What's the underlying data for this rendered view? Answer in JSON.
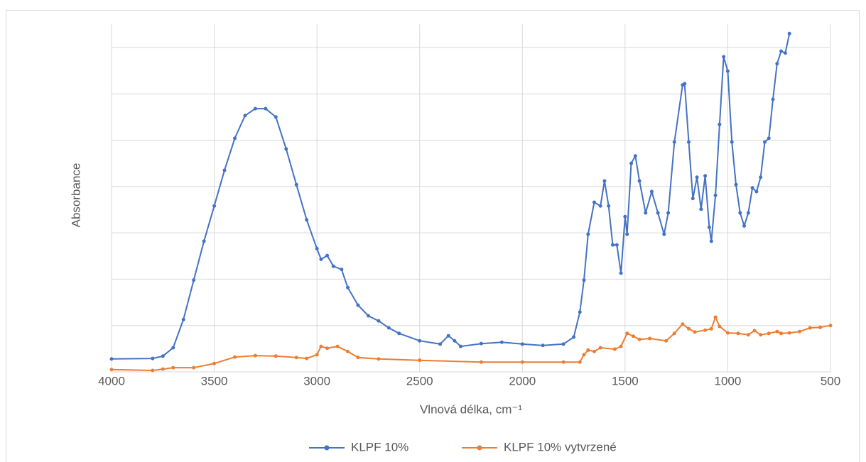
{
  "chart_data": {
    "type": "line",
    "x_label": "Vlnová délka, cm⁻¹",
    "y_label": "Absorbance",
    "xlim": [
      4000,
      500
    ],
    "xticks": [
      4000,
      3500,
      3000,
      2500,
      2000,
      1500,
      1000,
      500
    ],
    "ylim": [
      0,
      0.75
    ],
    "yticks": [
      0,
      0.1,
      0.2,
      0.3,
      0.4,
      0.5,
      0.6,
      0.7
    ],
    "grid": true,
    "legend": "bottom",
    "series": [
      {
        "name": "KLPF 10%",
        "color": "#4472c4",
        "x": [
          4000,
          3800,
          3750,
          3700,
          3650,
          3600,
          3550,
          3500,
          3450,
          3400,
          3350,
          3300,
          3250,
          3200,
          3150,
          3100,
          3050,
          3000,
          2980,
          2950,
          2920,
          2880,
          2850,
          2800,
          2750,
          2700,
          2650,
          2600,
          2500,
          2400,
          2360,
          2330,
          2300,
          2200,
          2100,
          2000,
          1900,
          1800,
          1750,
          1720,
          1700,
          1680,
          1650,
          1620,
          1600,
          1580,
          1560,
          1540,
          1520,
          1500,
          1490,
          1470,
          1450,
          1430,
          1400,
          1370,
          1340,
          1310,
          1290,
          1260,
          1220,
          1210,
          1190,
          1170,
          1150,
          1130,
          1110,
          1090,
          1080,
          1060,
          1040,
          1020,
          1000,
          980,
          960,
          940,
          920,
          900,
          880,
          860,
          840,
          820,
          800,
          780,
          760,
          740,
          720,
          700
        ],
        "values": [
          0.028,
          0.029,
          0.034,
          0.052,
          0.113,
          0.198,
          0.282,
          0.358,
          0.435,
          0.504,
          0.553,
          0.568,
          0.568,
          0.55,
          0.481,
          0.404,
          0.328,
          0.266,
          0.243,
          0.251,
          0.228,
          0.221,
          0.182,
          0.144,
          0.121,
          0.11,
          0.095,
          0.083,
          0.067,
          0.06,
          0.078,
          0.067,
          0.055,
          0.061,
          0.064,
          0.06,
          0.057,
          0.06,
          0.075,
          0.129,
          0.198,
          0.297,
          0.366,
          0.358,
          0.412,
          0.358,
          0.274,
          0.274,
          0.213,
          0.335,
          0.297,
          0.45,
          0.466,
          0.412,
          0.343,
          0.389,
          0.343,
          0.297,
          0.343,
          0.496,
          0.619,
          0.622,
          0.496,
          0.374,
          0.42,
          0.351,
          0.423,
          0.312,
          0.282,
          0.381,
          0.534,
          0.68,
          0.649,
          0.496,
          0.404,
          0.343,
          0.315,
          0.343,
          0.397,
          0.389,
          0.42,
          0.496,
          0.504,
          0.588,
          0.665,
          0.692,
          0.688,
          0.73
        ]
      },
      {
        "name": "KLPF 10% vytvrzené",
        "color": "#ed7d31",
        "x": [
          4000,
          3800,
          3750,
          3700,
          3600,
          3500,
          3400,
          3300,
          3200,
          3100,
          3050,
          3000,
          2980,
          2950,
          2900,
          2850,
          2800,
          2700,
          2500,
          2200,
          2000,
          1800,
          1720,
          1700,
          1680,
          1650,
          1620,
          1550,
          1520,
          1490,
          1460,
          1430,
          1380,
          1300,
          1260,
          1220,
          1190,
          1160,
          1110,
          1080,
          1060,
          1040,
          1000,
          950,
          900,
          870,
          840,
          800,
          760,
          740,
          700,
          650,
          600,
          550,
          500
        ],
        "values": [
          0.005,
          0.003,
          0.006,
          0.009,
          0.009,
          0.018,
          0.032,
          0.035,
          0.034,
          0.031,
          0.029,
          0.037,
          0.055,
          0.051,
          0.055,
          0.044,
          0.031,
          0.028,
          0.025,
          0.021,
          0.021,
          0.021,
          0.021,
          0.037,
          0.047,
          0.044,
          0.052,
          0.049,
          0.055,
          0.083,
          0.077,
          0.07,
          0.072,
          0.067,
          0.083,
          0.103,
          0.093,
          0.086,
          0.09,
          0.093,
          0.118,
          0.098,
          0.084,
          0.083,
          0.08,
          0.089,
          0.08,
          0.083,
          0.087,
          0.083,
          0.084,
          0.087,
          0.095,
          0.096,
          0.1
        ]
      }
    ]
  }
}
